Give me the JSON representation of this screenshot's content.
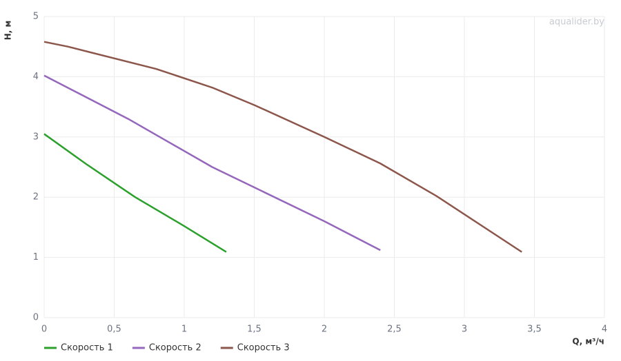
{
  "chart_data": {
    "type": "line",
    "watermark": "aqualider.by",
    "x_label": "Q, м³/ч",
    "y_label": "H, м",
    "xlim": [
      0,
      4
    ],
    "ylim": [
      0,
      5
    ],
    "xticks": [
      0,
      {
        "value": 0.5,
        "label": "0,5"
      },
      1,
      {
        "value": 1.5,
        "label": "1,5"
      },
      2,
      {
        "value": 2.5,
        "label": "2,5"
      },
      3,
      {
        "value": 3.5,
        "label": "3,5"
      },
      4
    ],
    "yticks": [
      0,
      1,
      2,
      3,
      4,
      5
    ],
    "grid": true,
    "legend": "bottom-left",
    "series": [
      {
        "name": "Скорость 1",
        "color": "#2ca02c",
        "x": [
          0,
          0.3,
          0.65,
          1.0,
          1.3
        ],
        "values": [
          3.05,
          2.55,
          2.0,
          1.52,
          1.09
        ]
      },
      {
        "name": "Скорость 2",
        "color": "#9467bd",
        "x": [
          0,
          0.6,
          1.2,
          2.0,
          2.4
        ],
        "values": [
          4.02,
          3.3,
          2.5,
          1.6,
          1.12
        ]
      },
      {
        "name": "Скорость 3",
        "color": "#8c564b",
        "x": [
          0,
          0.17,
          0.8,
          1.2,
          1.5,
          2.0,
          2.4,
          2.8,
          3.41
        ],
        "values": [
          4.58,
          4.5,
          4.13,
          3.82,
          3.53,
          3.0,
          2.56,
          2.02,
          1.09
        ]
      }
    ]
  }
}
